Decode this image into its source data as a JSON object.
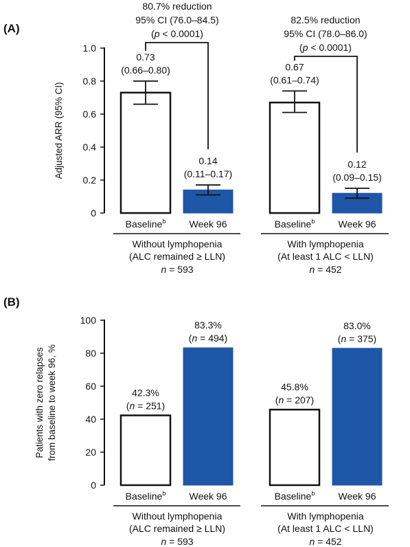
{
  "colors": {
    "baseline_fill": "#ffffff",
    "week96_fill": "#1f57a8",
    "stroke": "#111111"
  },
  "chart_data": [
    {
      "panel": "(A)",
      "type": "bar",
      "ylabel": "Adjusted ARR (95% CI)",
      "ylim": [
        0,
        1.0
      ],
      "yticks": [
        "0",
        "0.2",
        "0.4",
        "0.6",
        "0.8",
        "1.0"
      ],
      "categories": [
        "Baseline",
        "Week 96",
        "Baseline",
        "Week 96"
      ],
      "groups": [
        {
          "line1": "Without lymphopenia",
          "line2": "(ALC remained ≥ LLN)",
          "n_prefix": "n",
          "n_suffix": " = 593"
        },
        {
          "line1": "With lymphopenia",
          "line2": "(At least 1 ALC < LLN)",
          "n_prefix": "n",
          "n_suffix": " = 452"
        }
      ],
      "bars": [
        {
          "category": "Baseline",
          "superscript": "b",
          "value": 0.73,
          "ci": [
            0.66,
            0.8
          ],
          "label1": "0.73",
          "label2": "(0.66–0.80)"
        },
        {
          "category": "Week 96",
          "value": 0.14,
          "ci": [
            0.11,
            0.17
          ],
          "label1": "0.14",
          "label2": "(0.11–0.17)"
        },
        {
          "category": "Baseline",
          "superscript": "b",
          "value": 0.67,
          "ci": [
            0.61,
            0.74
          ],
          "label1": "0.67",
          "label2": "(0.61–0.74)"
        },
        {
          "category": "Week 96",
          "value": 0.12,
          "ci": [
            0.09,
            0.15
          ],
          "label1": "0.12",
          "label2": "(0.09–0.15)"
        }
      ],
      "annotations": [
        {
          "line1": "80.7% reduction",
          "line2": "95% CI (76.0–84.5)",
          "p_text": "p",
          "p_rest": " < 0.0001"
        },
        {
          "line1": "82.5% reduction",
          "line2": "95% CI (78.0–86.0)",
          "p_text": "p",
          "p_rest": " < 0.0001"
        }
      ]
    },
    {
      "panel": "(B)",
      "type": "bar",
      "ylabel_line1": "Patients with zero relapses",
      "ylabel_line2": "from baseline to week 96, %",
      "ylim": [
        0,
        100
      ],
      "yticks": [
        "0",
        "20",
        "40",
        "60",
        "80",
        "100"
      ],
      "categories": [
        "Baseline",
        "Week 96",
        "Baseline",
        "Week 96"
      ],
      "groups": [
        {
          "line1": "Without lymphopenia",
          "line2": "(ALC remained ≥ LLN)",
          "n_prefix": "n",
          "n_suffix": " = 593"
        },
        {
          "line1": "With lymphopenia",
          "line2": "(At least 1 ALC < LLN)",
          "n_prefix": "n",
          "n_suffix": " = 452"
        }
      ],
      "bars": [
        {
          "category": "Baseline",
          "superscript": "b",
          "value": 42.3,
          "label1": "42.3%",
          "n_prefix": "n",
          "n_rest": " = 251"
        },
        {
          "category": "Week 96",
          "value": 83.3,
          "label1": "83.3%",
          "n_prefix": "n",
          "n_rest": " = 494"
        },
        {
          "category": "Baseline",
          "superscript": "b",
          "value": 45.8,
          "label1": "45.8%",
          "n_prefix": "n",
          "n_rest": " = 207"
        },
        {
          "category": "Week 96",
          "value": 83.0,
          "label1": "83.0%",
          "n_prefix": "n",
          "n_rest": " = 375"
        }
      ]
    }
  ]
}
